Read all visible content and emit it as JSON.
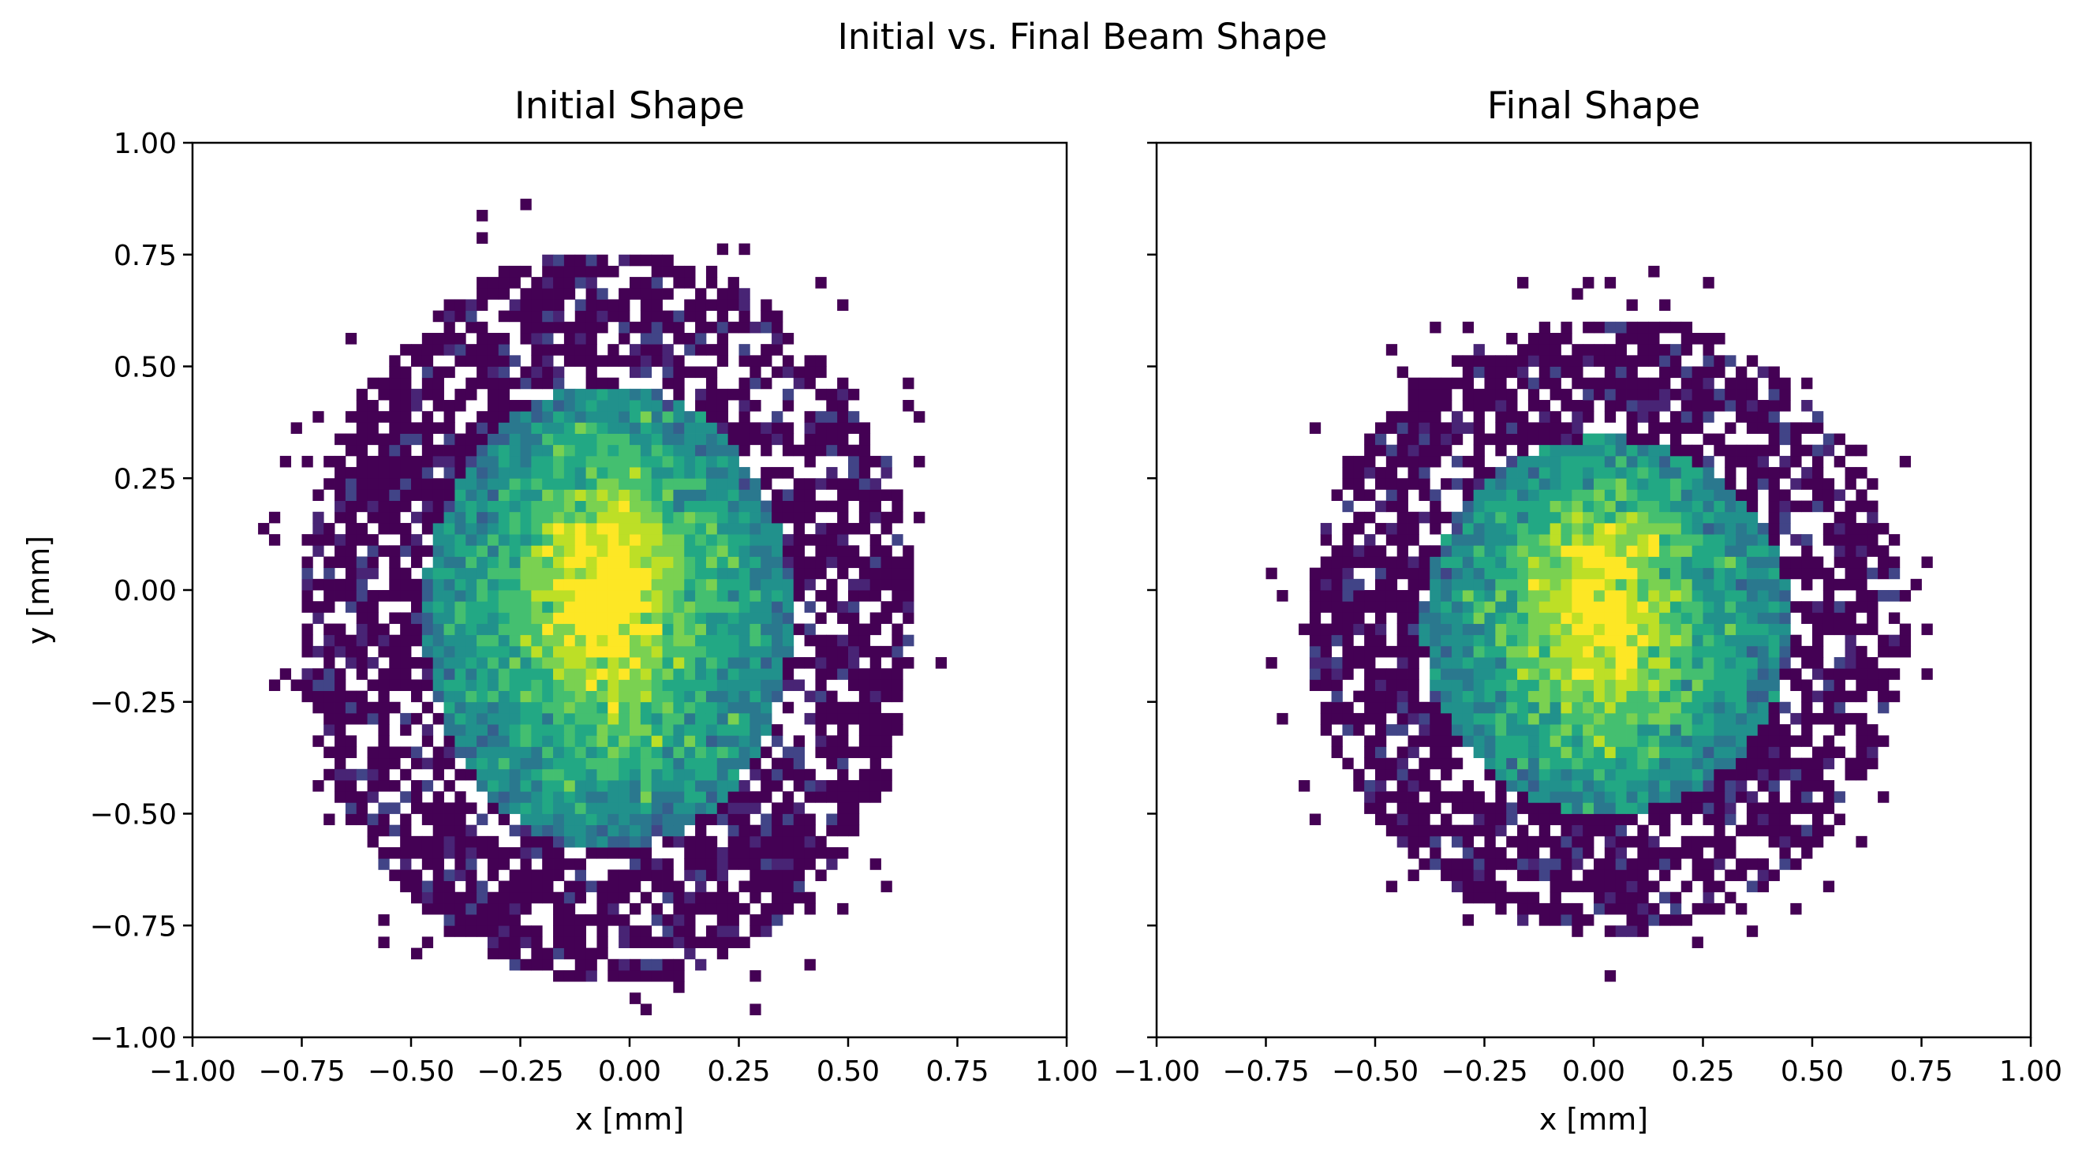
{
  "figure": {
    "suptitle": "Initial vs. Final Beam Shape"
  },
  "chart_data": [
    {
      "type": "heatmap",
      "title": "Initial Shape",
      "xlabel": "x [mm]",
      "ylabel": "y [mm]",
      "xlim": [
        -1.0,
        1.0
      ],
      "ylim": [
        -1.0,
        1.0
      ],
      "xticks": [
        "−1.00",
        "−0.75",
        "−0.50",
        "−0.25",
        "0.00",
        "0.25",
        "0.50",
        "0.75",
        "1.00"
      ],
      "yticks": [
        "−1.00",
        "−0.75",
        "−0.50",
        "−0.25",
        "0.00",
        "0.25",
        "0.50",
        "0.75",
        "1.00"
      ],
      "colormap": "viridis",
      "bins": 80,
      "grid": false,
      "distribution": {
        "center": [
          -0.05,
          -0.06
        ],
        "core_halfwidth": [
          0.42,
          0.52
        ],
        "halo_halfwidth": [
          0.68,
          0.79
        ],
        "peak_location": [
          -0.05,
          0.0
        ],
        "peak_color": "#fde725"
      }
    },
    {
      "type": "heatmap",
      "title": "Final Shape",
      "xlabel": "x [mm]",
      "ylabel": "",
      "xlim": [
        -1.0,
        1.0
      ],
      "ylim": [
        -1.0,
        1.0
      ],
      "xticks": [
        "−1.00",
        "−0.75",
        "−0.50",
        "−0.25",
        "0.00",
        "0.25",
        "0.50",
        "0.75",
        "1.00"
      ],
      "yticks": [],
      "colormap": "viridis",
      "bins": 80,
      "grid": false,
      "distribution": {
        "center": [
          0.03,
          -0.08
        ],
        "core_halfwidth": [
          0.42,
          0.42
        ],
        "halo_halfwidth": [
          0.66,
          0.66
        ],
        "peak_location": [
          0.02,
          -0.03
        ],
        "peak_color": "#fde725"
      }
    }
  ]
}
